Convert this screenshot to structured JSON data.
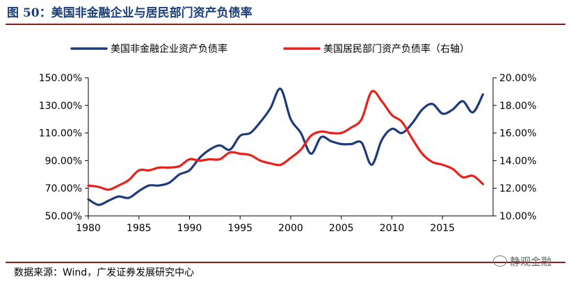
{
  "title": "图 50：美国非金融企业与居民部门资产负债率",
  "source": "数据来源：Wind，广发证券发展研究中心",
  "watermark": "静观金融",
  "chart_data": {
    "type": "line",
    "x": [
      1980,
      1981,
      1982,
      1983,
      1984,
      1985,
      1986,
      1987,
      1988,
      1989,
      1990,
      1991,
      1992,
      1993,
      1994,
      1995,
      1996,
      1997,
      1998,
      1999,
      2000,
      2001,
      2002,
      2003,
      2004,
      2005,
      2006,
      2007,
      2008,
      2009,
      2010,
      2011,
      2012,
      2013,
      2014,
      2015,
      2016,
      2017,
      2018,
      2019
    ],
    "xticks": [
      1980,
      1985,
      1990,
      1995,
      2000,
      2005,
      2010,
      2015
    ],
    "xlim": [
      1980,
      2020
    ],
    "ylim_left": [
      50,
      150
    ],
    "yticks_left": [
      "50.00%",
      "70.00%",
      "90.00%",
      "110.00%",
      "130.00%",
      "150.00%"
    ],
    "ylim_right": [
      10,
      20
    ],
    "yticks_right": [
      "10.00%",
      "12.00%",
      "14.00%",
      "16.00%",
      "18.00%",
      "20.00%"
    ],
    "legend_position": "top",
    "grid": false,
    "series": [
      {
        "name": "美国非金融企业资产负债率",
        "axis": "left",
        "color": "#1f3a7a",
        "values": [
          62,
          58,
          61,
          64,
          63,
          68,
          72,
          72,
          74,
          80,
          83,
          92,
          98,
          101,
          98,
          108,
          110,
          118,
          128,
          142,
          120,
          110,
          95,
          107,
          104,
          102,
          102,
          103,
          87,
          105,
          113,
          110,
          117,
          127,
          131,
          124,
          127,
          133,
          125,
          138
        ]
      },
      {
        "name": "美国居民部门资产负债率（右轴）",
        "axis": "right",
        "color": "#e8201c",
        "values": [
          12.2,
          12.1,
          11.9,
          12.2,
          12.6,
          13.3,
          13.3,
          13.5,
          13.5,
          13.6,
          14.1,
          14.0,
          14.1,
          14.1,
          14.6,
          14.5,
          14.4,
          14.0,
          13.8,
          13.7,
          14.2,
          14.8,
          15.8,
          16.1,
          16.0,
          16.0,
          16.4,
          17.0,
          19.0,
          18.3,
          17.3,
          16.8,
          15.6,
          14.5,
          13.9,
          13.7,
          13.4,
          12.8,
          12.9,
          12.3
        ]
      }
    ]
  }
}
